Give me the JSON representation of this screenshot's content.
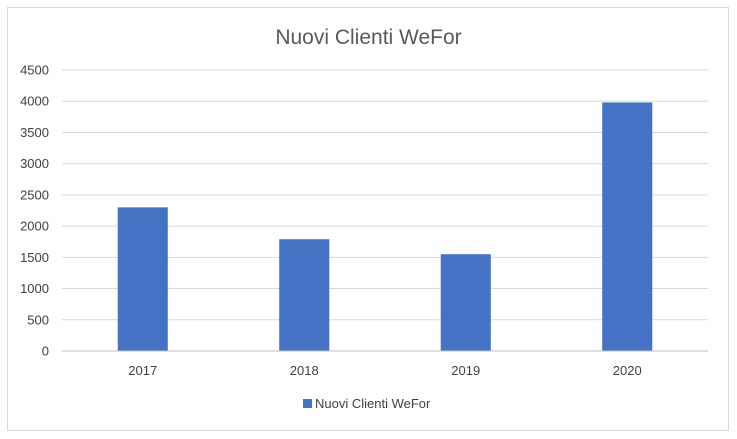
{
  "chart_data": {
    "type": "bar",
    "title": "Nuovi Clienti WeFor",
    "categories": [
      "2017",
      "2018",
      "2019",
      "2020"
    ],
    "series": [
      {
        "name": "Nuovi Clienti WeFor",
        "values": [
          2300,
          1790,
          1550,
          3980
        ],
        "color": "#4472c4"
      }
    ],
    "xlabel": "",
    "ylabel": "",
    "ylim": [
      0,
      4500
    ],
    "yticks": [
      0,
      500,
      1000,
      1500,
      2000,
      2500,
      3000,
      3500,
      4000,
      4500
    ],
    "grid": true,
    "gridColor": "#d9d9d9",
    "axisColor": "#bfbfbf",
    "legend_position": "bottom"
  }
}
